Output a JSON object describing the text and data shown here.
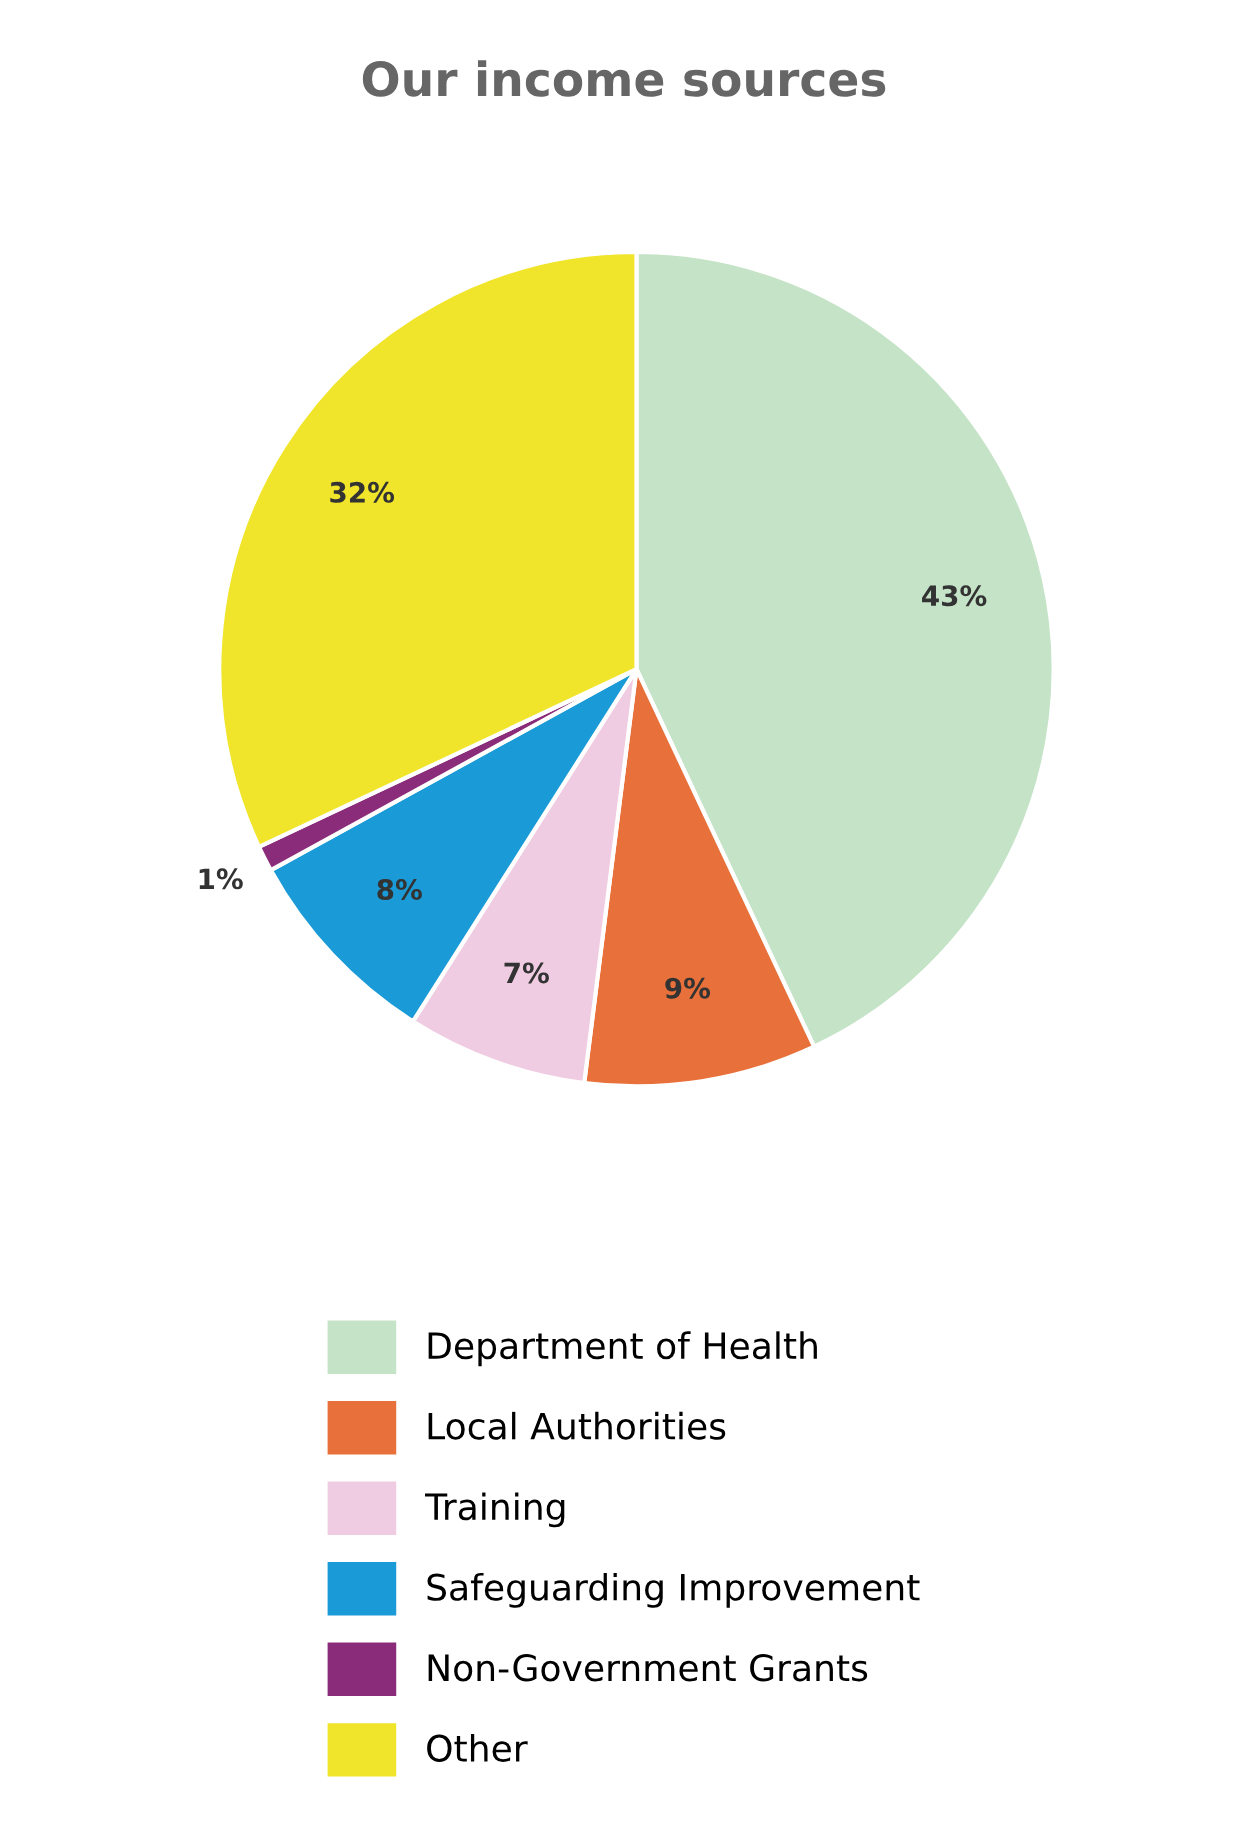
{
  "chart_data": {
    "type": "pie",
    "title": "Our income sources",
    "categories": [
      "Department of Health",
      "Local Authorities",
      "Training",
      "Safeguarding Improvement",
      "Non-Government Grants",
      "Other"
    ],
    "values": [
      43,
      9,
      7,
      8,
      1,
      32
    ],
    "colors": [
      "#c5e3c7",
      "#e8703a",
      "#f0cce3",
      "#1a9ad6",
      "#8b2c7a",
      "#f0e52a"
    ],
    "value_labels": [
      "43%",
      "9%",
      "7%",
      "8%",
      "1%",
      "32%"
    ],
    "legend": "bottom"
  }
}
